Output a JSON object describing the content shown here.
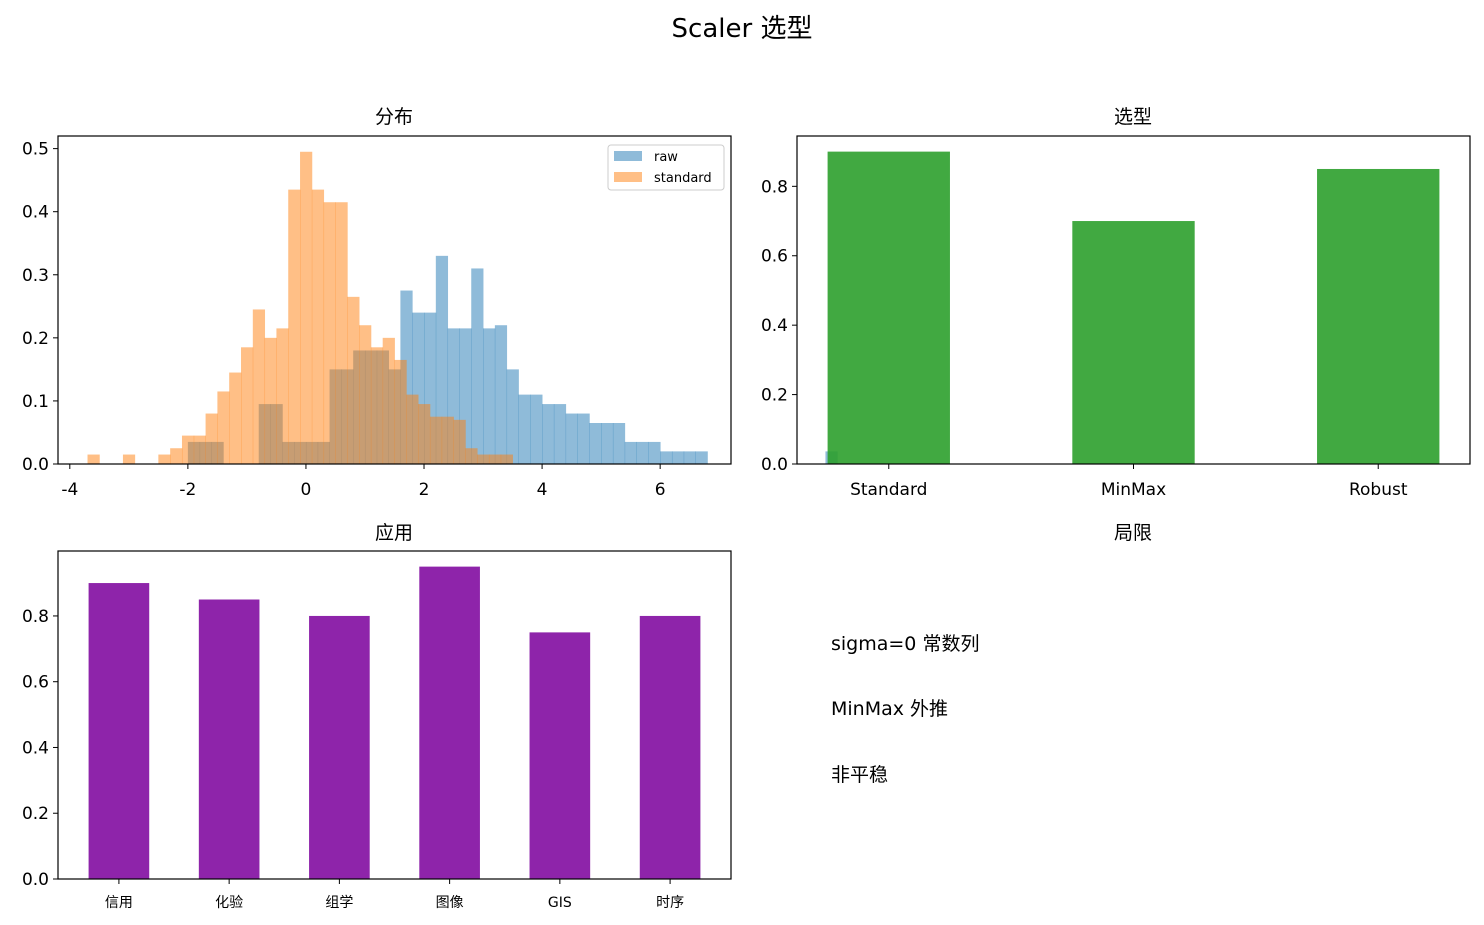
{
  "figure": {
    "title": "Scaler 选型"
  },
  "chart_data": [
    {
      "type": "histogram",
      "title": "分布",
      "xlim": [
        -4.2,
        7.2
      ],
      "ylim": [
        0,
        0.52
      ],
      "xticks": [
        -4,
        -2,
        0,
        2,
        4,
        6
      ],
      "yticks": [
        0.0,
        0.1,
        0.2,
        0.3,
        0.4,
        0.5
      ],
      "legend": "top-right",
      "bin_width": 0.2,
      "series": [
        {
          "name": "raw",
          "color": "#1f77b4",
          "alpha": 0.5,
          "bins_start": -2.0,
          "values": [
            0.035,
            0.035,
            0.035,
            0.0,
            0.0,
            0.0,
            0.095,
            0.095,
            0.035,
            0.035,
            0.035,
            0.035,
            0.15,
            0.15,
            0.18,
            0.18,
            0.18,
            0.15,
            0.275,
            0.24,
            0.24,
            0.33,
            0.215,
            0.215,
            0.31,
            0.215,
            0.22,
            0.15,
            0.11,
            0.11,
            0.095,
            0.095,
            0.08,
            0.08,
            0.065,
            0.065,
            0.065,
            0.035,
            0.035,
            0.035,
            0.02,
            0.02,
            0.02,
            0.02,
            0.0,
            0.0,
            0.0,
            0.0,
            0.0,
            0.0,
            0.0,
            0.0,
            0.0,
            0.0,
            0.02
          ]
        },
        {
          "name": "standard",
          "color": "#ff7f0e",
          "alpha": 0.5,
          "bins_start": -3.7,
          "values": [
            0.015,
            0.0,
            0.0,
            0.015,
            0.0,
            0.0,
            0.015,
            0.025,
            0.045,
            0.045,
            0.08,
            0.115,
            0.145,
            0.185,
            0.245,
            0.2,
            0.215,
            0.435,
            0.495,
            0.435,
            0.415,
            0.415,
            0.265,
            0.22,
            0.185,
            0.2,
            0.165,
            0.11,
            0.095,
            0.075,
            0.075,
            0.07,
            0.025,
            0.015,
            0.015,
            0.015
          ]
        }
      ]
    },
    {
      "type": "bar",
      "title": "选型",
      "categories": [
        "Standard",
        "MinMax",
        "Robust"
      ],
      "values": [
        0.9,
        0.7,
        0.85
      ],
      "color": "#2ca02c",
      "alpha": 0.9,
      "ylim": [
        0,
        0.945
      ],
      "yticks": [
        0.0,
        0.2,
        0.4,
        0.6,
        0.8
      ]
    },
    {
      "type": "bar",
      "title": "应用",
      "categories": [
        "信用",
        "化验",
        "组学",
        "图像",
        "GIS",
        "时序"
      ],
      "values": [
        0.9,
        0.85,
        0.8,
        0.95,
        0.75,
        0.8
      ],
      "color": "#8e24aa",
      "ylim": [
        0,
        0.9975
      ],
      "yticks": [
        0.0,
        0.2,
        0.4,
        0.6,
        0.8
      ]
    }
  ],
  "notes_panel": {
    "title": "局限",
    "lines": [
      "sigma=0 常数列",
      "MinMax 外推",
      "非平稳"
    ]
  }
}
